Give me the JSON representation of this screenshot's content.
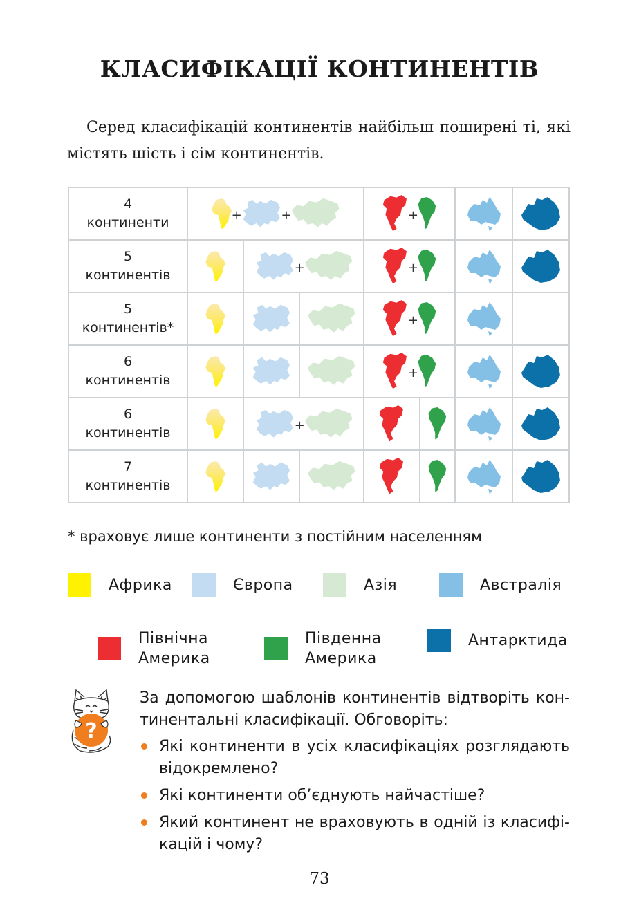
{
  "title": "КЛАСИФІКАЦІЇ КОНТИНЕНТІВ",
  "intro": "Серед класифікацій континентів найбільш поширені ті, які містять шість і сім континентів.",
  "table": {
    "rows": [
      {
        "label_num": "4",
        "label_word": "континенти"
      },
      {
        "label_num": "5",
        "label_word": "континентів"
      },
      {
        "label_num": "5",
        "label_word": "континентів*"
      },
      {
        "label_num": "6",
        "label_word": "континентів"
      },
      {
        "label_num": "6",
        "label_word": "континентів"
      },
      {
        "label_num": "7",
        "label_word": "континентів"
      }
    ],
    "plus": "+"
  },
  "footnote": "* враховує лише континенти з постійним населенням",
  "legend": [
    {
      "name": "Африка",
      "color": "#fff200"
    },
    {
      "name": "Європа",
      "color": "#c3dcf1"
    },
    {
      "name": "Азія",
      "color": "#d6ead3"
    },
    {
      "name": "Австралія",
      "color": "#84bfe6"
    },
    {
      "name": "Північна Америка",
      "line1": "Північна",
      "line2": "Америка",
      "color": "#ec2e33"
    },
    {
      "name": "Південна Америка",
      "line1": "Південна",
      "line2": "Америка",
      "color": "#2fa24b"
    },
    {
      "name": "Антарктида",
      "color": "#0d71a9"
    }
  ],
  "task": {
    "text": "За допомогою шаблонів континентів відтворіть кон-тинентальні класифікації. Обговоріть:",
    "questions": [
      "Які континенти в усіх класифікаціях розглядають відокремлено?",
      "Які континенти об’єднують найчастіше?",
      "Який континент не враховують в одній із класифі-кацій і чому?"
    ],
    "icon": "question-icon",
    "question_mark": "?"
  },
  "page_number": "73"
}
